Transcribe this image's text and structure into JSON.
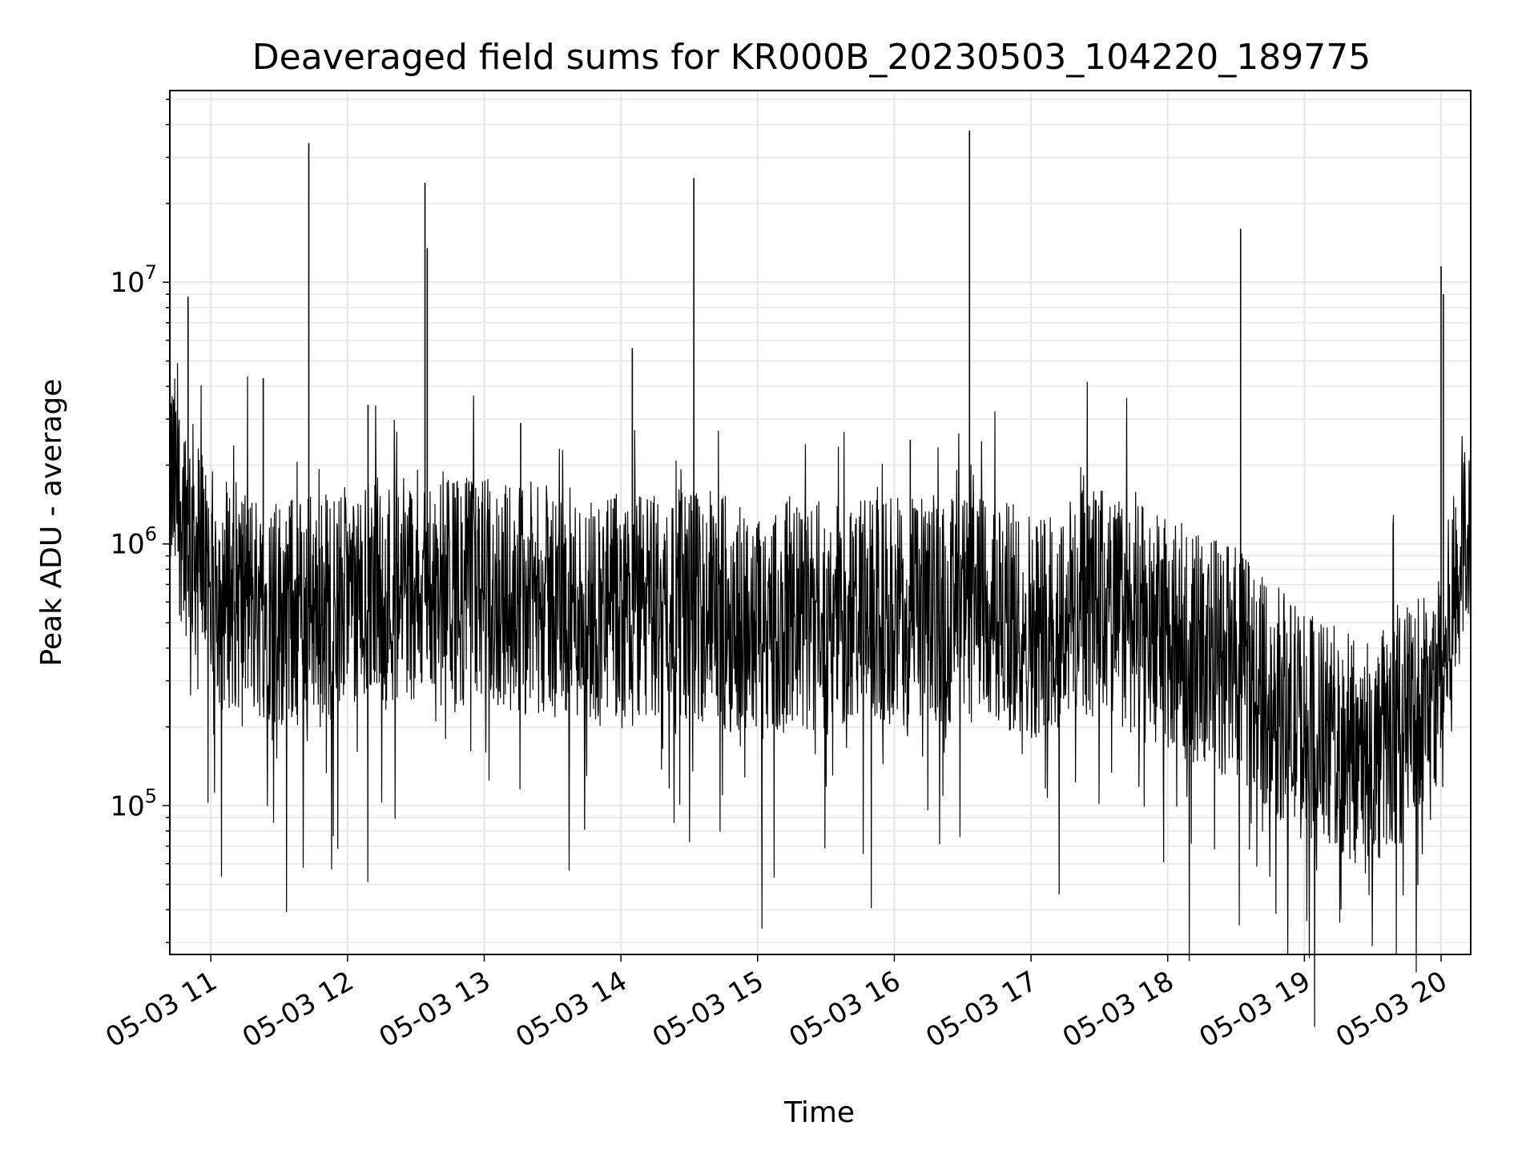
{
  "chart_data": {
    "type": "line",
    "title": "Deaveraged field sums for KR000B_20230503_104220_189775",
    "xlabel": "Time",
    "ylabel": "Peak ADU - average",
    "x_start": "05-03 10:42",
    "x_end": "05-03 20:13",
    "xlim": [
      "05-03 10:42",
      "05-03 20:13"
    ],
    "ylim": [
      27000,
      54000000
    ],
    "yscale": "log",
    "x_ticks": [
      "05-03 11",
      "05-03 12",
      "05-03 13",
      "05-03 14",
      "05-03 15",
      "05-03 16",
      "05-03 17",
      "05-03 18",
      "05-03 19",
      "05-03 20"
    ],
    "y_ticks": [
      {
        "value": 100000,
        "base": "10",
        "exp": "5"
      },
      {
        "value": 1000000,
        "base": "10",
        "exp": "6"
      },
      {
        "value": 10000000,
        "base": "10",
        "exp": "7"
      }
    ],
    "grid": true,
    "legend": "none",
    "line_color": "#000000",
    "grid_color": "#e6e6e6",
    "series": [
      {
        "x": [
          "05-03 10:42",
          "05-03 11:00",
          "05-03 11:30",
          "05-03 12:00",
          "05-03 12:30",
          "05-03 13:00",
          "05-03 13:30",
          "05-03 14:00",
          "05-03 14:30",
          "05-03 15:00",
          "05-03 15:30",
          "05-03 16:00",
          "05-03 16:30",
          "05-03 17:00",
          "05-03 17:30",
          "05-03 18:00",
          "05-03 18:30",
          "05-03 19:00",
          "05-03 19:30",
          "05-03 20:00",
          "05-03 20:13"
        ],
        "values": [
          1800000,
          700000,
          550000,
          600000,
          700000,
          650000,
          600000,
          550000,
          600000,
          500000,
          520000,
          550000,
          560000,
          500000,
          600000,
          450000,
          350000,
          200000,
          150000,
          300000,
          1500000
        ]
      }
    ],
    "spikes": [
      {
        "x": "05-03 10:50",
        "y": 8800000
      },
      {
        "x": "05-03 11:23",
        "y": 4300000
      },
      {
        "x": "05-03 11:43",
        "y": 34000000
      },
      {
        "x": "05-03 12:09",
        "y": 3400000
      },
      {
        "x": "05-03 12:34",
        "y": 24000000
      },
      {
        "x": "05-03 12:35",
        "y": 13500000
      },
      {
        "x": "05-03 13:16",
        "y": 2900000
      },
      {
        "x": "05-03 14:05",
        "y": 5600000
      },
      {
        "x": "05-03 14:32",
        "y": 25000000
      },
      {
        "x": "05-03 16:07",
        "y": 2500000
      },
      {
        "x": "05-03 16:33",
        "y": 38000000
      },
      {
        "x": "05-03 18:32",
        "y": 16000000
      },
      {
        "x": "05-03 20:00",
        "y": 11500000
      },
      {
        "x": "05-03 20:01",
        "y": 9000000
      }
    ]
  }
}
